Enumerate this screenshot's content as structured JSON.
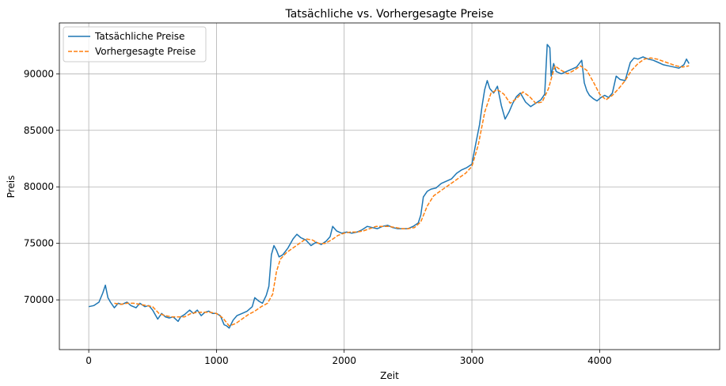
{
  "chart_data": {
    "type": "line",
    "title": "Tatsächliche vs. Vorhergesagte Preise",
    "xlabel": "Zeit",
    "ylabel": "Preis",
    "xlim": [
      -230,
      4940
    ],
    "ylim": [
      65600,
      94500
    ],
    "xticks": [
      0,
      1000,
      2000,
      3000,
      4000
    ],
    "yticks": [
      70000,
      75000,
      80000,
      85000,
      90000
    ],
    "grid": true,
    "legend_position": "top-left",
    "series": [
      {
        "name": "Tatsächliche Preise",
        "color": "#1f77b4",
        "style": "solid",
        "x": [
          0,
          40,
          80,
          110,
          130,
          150,
          170,
          200,
          230,
          260,
          300,
          330,
          370,
          400,
          440,
          470,
          500,
          540,
          570,
          600,
          630,
          660,
          700,
          720,
          750,
          790,
          820,
          850,
          880,
          910,
          940,
          970,
          1000,
          1030,
          1060,
          1080,
          1100,
          1130,
          1160,
          1200,
          1240,
          1280,
          1300,
          1330,
          1360,
          1390,
          1410,
          1430,
          1450,
          1470,
          1490,
          1520,
          1560,
          1600,
          1630,
          1660,
          1700,
          1740,
          1780,
          1820,
          1860,
          1890,
          1910,
          1940,
          1980,
          2020,
          2060,
          2100,
          2140,
          2180,
          2220,
          2260,
          2300,
          2340,
          2380,
          2420,
          2460,
          2500,
          2540,
          2580,
          2600,
          2620,
          2650,
          2680,
          2720,
          2760,
          2800,
          2840,
          2880,
          2920,
          2960,
          3000,
          3030,
          3060,
          3080,
          3100,
          3120,
          3140,
          3170,
          3200,
          3230,
          3260,
          3290,
          3320,
          3350,
          3380,
          3420,
          3460,
          3500,
          3540,
          3570,
          3590,
          3610,
          3620,
          3640,
          3660,
          3700,
          3740,
          3780,
          3820,
          3860,
          3880,
          3900,
          3920,
          3950,
          3980,
          4010,
          4040,
          4070,
          4100,
          4130,
          4160,
          4200,
          4240,
          4270,
          4300,
          4340,
          4380,
          4420,
          4460,
          4500,
          4540,
          4580,
          4620,
          4660,
          4680,
          4700
        ],
        "values": [
          69400,
          69500,
          69800,
          70600,
          71300,
          70200,
          69800,
          69300,
          69700,
          69600,
          69800,
          69500,
          69300,
          69700,
          69400,
          69500,
          69100,
          68300,
          68800,
          68500,
          68400,
          68500,
          68100,
          68500,
          68700,
          69100,
          68800,
          69100,
          68600,
          68900,
          69000,
          68800,
          68800,
          68600,
          67800,
          67700,
          67500,
          68200,
          68600,
          68800,
          69000,
          69400,
          70200,
          69900,
          69700,
          70400,
          71200,
          74000,
          74800,
          74400,
          73800,
          74000,
          74600,
          75400,
          75800,
          75500,
          75300,
          74800,
          75100,
          74900,
          75200,
          75600,
          76500,
          76100,
          75900,
          76000,
          75900,
          76000,
          76200,
          76500,
          76400,
          76300,
          76500,
          76600,
          76400,
          76300,
          76300,
          76300,
          76500,
          76800,
          77500,
          79100,
          79600,
          79800,
          79900,
          80300,
          80500,
          80700,
          81200,
          81500,
          81700,
          82000,
          83800,
          85500,
          87200,
          88600,
          89400,
          88700,
          88300,
          88900,
          87200,
          86000,
          86600,
          87400,
          88000,
          88300,
          87500,
          87100,
          87400,
          87700,
          88200,
          92600,
          92300,
          89800,
          90900,
          90200,
          90000,
          90200,
          90400,
          90600,
          91200,
          89200,
          88500,
          88100,
          87800,
          87600,
          87900,
          88100,
          87900,
          88300,
          89800,
          89500,
          89400,
          91000,
          91400,
          91300,
          91500,
          91300,
          91200,
          91000,
          90800,
          90700,
          90600,
          90500,
          90800,
          91300,
          90900
        ]
      },
      {
        "name": "Vorhergesagte Preise",
        "color": "#ff7f0e",
        "style": "dashed",
        "x": [
          200,
          250,
          300,
          350,
          400,
          450,
          500,
          550,
          600,
          650,
          700,
          750,
          800,
          850,
          900,
          950,
          1000,
          1050,
          1100,
          1150,
          1200,
          1250,
          1300,
          1350,
          1400,
          1440,
          1470,
          1500,
          1550,
          1600,
          1650,
          1700,
          1750,
          1800,
          1850,
          1900,
          1950,
          2000,
          2050,
          2100,
          2150,
          2200,
          2250,
          2300,
          2350,
          2400,
          2450,
          2500,
          2550,
          2600,
          2650,
          2700,
          2750,
          2800,
          2850,
          2900,
          2950,
          3000,
          3050,
          3100,
          3150,
          3200,
          3250,
          3300,
          3350,
          3400,
          3450,
          3500,
          3550,
          3600,
          3650,
          3700,
          3750,
          3800,
          3850,
          3900,
          3950,
          4000,
          4050,
          4100,
          4150,
          4200,
          4250,
          4300,
          4350,
          4400,
          4450,
          4500,
          4550,
          4600,
          4650,
          4700
        ],
        "values": [
          69700,
          69600,
          69700,
          69700,
          69600,
          69500,
          69400,
          68800,
          68600,
          68500,
          68500,
          68500,
          68800,
          68900,
          68900,
          68900,
          68800,
          68400,
          67700,
          67900,
          68300,
          68700,
          69000,
          69400,
          69700,
          70500,
          72500,
          73600,
          74200,
          74600,
          75000,
          75400,
          75300,
          75000,
          75000,
          75300,
          75700,
          75900,
          76000,
          76000,
          76100,
          76300,
          76500,
          76500,
          76500,
          76400,
          76300,
          76300,
          76400,
          76900,
          78300,
          79200,
          79600,
          80000,
          80400,
          80800,
          81200,
          81800,
          83700,
          86600,
          88300,
          88600,
          88200,
          87400,
          87800,
          88400,
          88000,
          87400,
          87500,
          88700,
          90700,
          90300,
          90000,
          90300,
          90700,
          90300,
          89300,
          88200,
          87700,
          88100,
          88700,
          89400,
          90300,
          90900,
          91300,
          91400,
          91300,
          91100,
          90900,
          90700,
          90600,
          90700
        ]
      }
    ]
  }
}
